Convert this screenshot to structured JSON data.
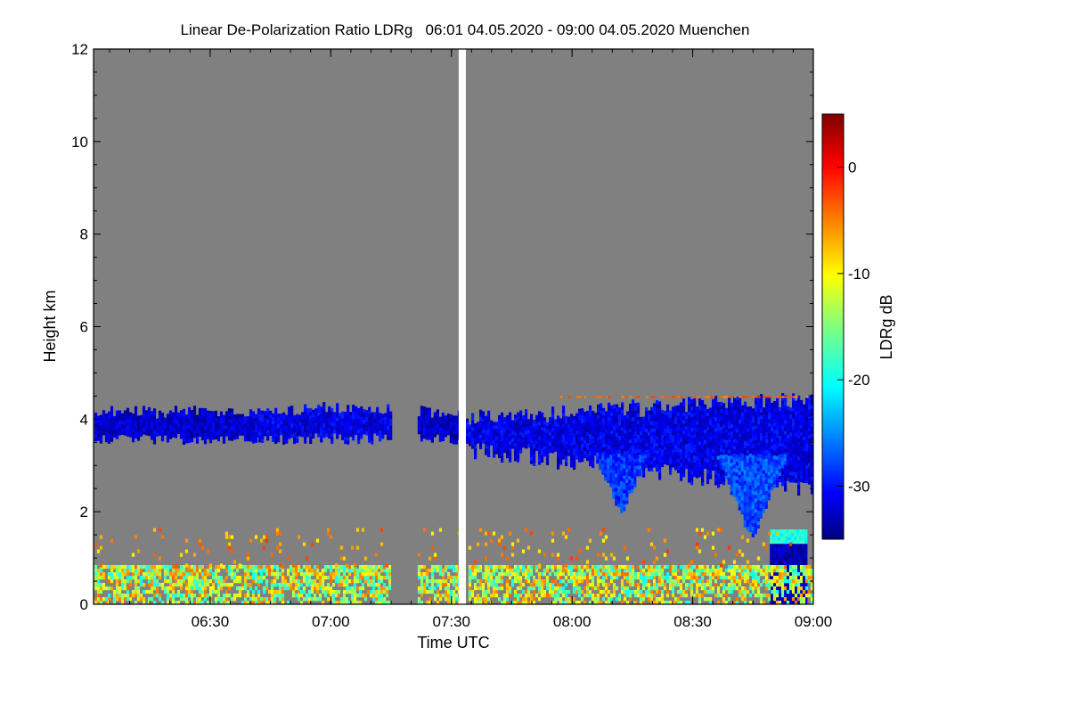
{
  "chart_data": {
    "type": "heatmap",
    "title": "Linear De-Polarization Ratio LDRg   06:01 04.05.2020 - 09:00 04.05.2020 Muenchen",
    "xlabel": "Time UTC",
    "ylabel": "Height km",
    "x_range_hours": [
      6.0167,
      9.0
    ],
    "ylim": [
      0,
      12
    ],
    "x_ticks": [
      {
        "label": "06:30",
        "value": 6.5
      },
      {
        "label": "07:00",
        "value": 7.0
      },
      {
        "label": "07:30",
        "value": 7.5
      },
      {
        "label": "08:00",
        "value": 8.0
      },
      {
        "label": "08:30",
        "value": 8.5
      },
      {
        "label": "09:00",
        "value": 9.0
      }
    ],
    "y_ticks": [
      {
        "label": "0",
        "value": 0
      },
      {
        "label": "2",
        "value": 2
      },
      {
        "label": "4",
        "value": 4
      },
      {
        "label": "6",
        "value": 6
      },
      {
        "label": "8",
        "value": 8
      },
      {
        "label": "10",
        "value": 10
      },
      {
        "label": "12",
        "value": 12
      }
    ],
    "colorbar": {
      "label": "LDRg dB",
      "range": [
        -35,
        5
      ],
      "ticks": [
        {
          "label": "0",
          "value": 0
        },
        {
          "label": "-10",
          "value": -10
        },
        {
          "label": "-20",
          "value": -20
        },
        {
          "label": "-30",
          "value": -30
        }
      ]
    },
    "background_color": "#808080",
    "data_gap": {
      "start": 7.53,
      "end": 7.56
    },
    "no_data_gap": {
      "start": 7.245,
      "end": 7.36
    },
    "regions": [
      {
        "name": "cirrus-layer-1",
        "t_start": 6.02,
        "t_end": 6.7,
        "h_bottom": 3.5,
        "h_top": 4.25,
        "ldr": -32
      },
      {
        "name": "cirrus-layer-2",
        "t_start": 6.7,
        "t_end": 7.245,
        "h_bottom": 3.5,
        "h_top": 4.3,
        "ldr": -31
      },
      {
        "name": "cirrus-layer-3",
        "t_start": 7.36,
        "t_end": 7.53,
        "h_bottom": 3.5,
        "h_top": 4.25,
        "ldr": -32
      },
      {
        "name": "cirrus-layer-4",
        "t_start": 7.56,
        "t_end": 9.0,
        "h_bottom": 3.2,
        "h_top": 4.6,
        "ldr": -31
      },
      {
        "name": "ice-fall-streak-1",
        "t_start": 8.1,
        "t_end": 8.3,
        "h_bottom": 2.0,
        "h_top": 3.2,
        "ldr": -28
      },
      {
        "name": "ice-fall-streak-2",
        "t_start": 8.6,
        "t_end": 8.88,
        "h_bottom": 1.5,
        "h_top": 3.2,
        "ldr": -27
      },
      {
        "name": "precipitation-column",
        "t_start": 8.82,
        "t_end": 8.97,
        "h_bottom": 0.0,
        "h_top": 1.6,
        "ldr": -33
      },
      {
        "name": "boundary-layer",
        "t_start": 6.02,
        "t_end": 9.0,
        "h_bottom": 0.0,
        "h_top": 0.8,
        "ldr": -12
      },
      {
        "name": "aerosol-lines",
        "t_start": 6.02,
        "t_end": 8.9,
        "h_bottom": 0.8,
        "h_top": 1.6,
        "ldr": -6
      }
    ]
  }
}
